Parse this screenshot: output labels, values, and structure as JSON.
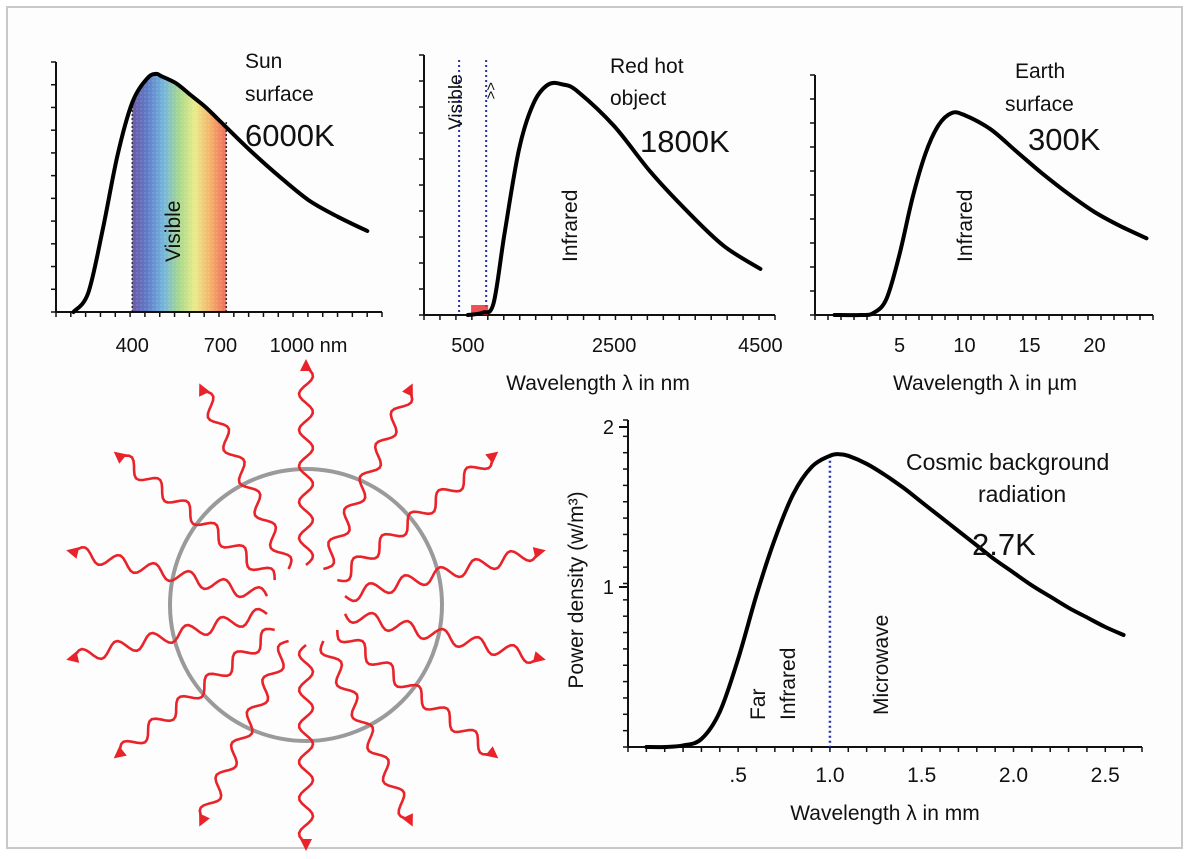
{
  "colors": {
    "curve": "#000000",
    "axis": "#111111",
    "frame": "#c9c9c9",
    "wave": "#e8242a",
    "circle": "#9a9a9a",
    "dotted_line": "#2233aa",
    "spectrum": [
      "#6a5aa8",
      "#5f7ec8",
      "#74b6dc",
      "#a8d88c",
      "#eaeb8a",
      "#f5b06a",
      "#ee6b5c"
    ]
  },
  "chart_data": [
    {
      "type": "line",
      "id": "sun",
      "label_lines": [
        "Sun",
        "surface"
      ],
      "temperature": "6000K",
      "band_label": "Visible",
      "x": [
        200,
        250,
        300,
        350,
        400,
        450,
        480,
        500,
        550,
        600,
        650,
        700,
        800,
        900,
        1000,
        1100,
        1200
      ],
      "y": [
        0.0,
        0.08,
        0.35,
        0.66,
        0.88,
        0.98,
        1.0,
        0.99,
        0.96,
        0.91,
        0.86,
        0.8,
        0.68,
        0.57,
        0.47,
        0.4,
        0.34
      ],
      "xlim": [
        120,
        1250
      ],
      "ylim": [
        0,
        1.05
      ],
      "visible_band": [
        400,
        720
      ],
      "xticks": [
        {
          "value": 400,
          "label": "400"
        },
        {
          "value": 700,
          "label": "700"
        },
        {
          "value": 1000,
          "label": "1000 nm"
        }
      ],
      "xlabel": "",
      "ylabel": ""
    },
    {
      "type": "line",
      "id": "red_hot",
      "label_lines": [
        "Red hot",
        "object"
      ],
      "temperature": "1800K",
      "band_label": "Infrared",
      "visible_label": "Visible",
      "x": [
        500,
        700,
        850,
        1000,
        1200,
        1400,
        1600,
        1800,
        2000,
        2500,
        3000,
        3500,
        4000,
        4500
      ],
      "y": [
        0.0,
        0.01,
        0.05,
        0.35,
        0.72,
        0.92,
        1.0,
        1.0,
        0.97,
        0.82,
        0.62,
        0.45,
        0.3,
        0.2
      ],
      "xlim": [
        -100,
        4700
      ],
      "ylim": [
        0,
        1.05
      ],
      "dotted_x": [
        380,
        750
      ],
      "xticks": [
        {
          "value": 500,
          "label": "500"
        },
        {
          "value": 2500,
          "label": "2500"
        },
        {
          "value": 4500,
          "label": "4500"
        }
      ],
      "xlabel": "Wavelength λ in nm",
      "ylabel": ""
    },
    {
      "type": "line",
      "id": "earth",
      "label_lines": [
        "Earth",
        "surface"
      ],
      "temperature": "300K",
      "band_label": "Infrared",
      "x": [
        0,
        2,
        3,
        4,
        5,
        6,
        7,
        8,
        9,
        10,
        12,
        14,
        16,
        18,
        20,
        22,
        24
      ],
      "y": [
        0.0,
        0.0,
        0.01,
        0.08,
        0.3,
        0.58,
        0.8,
        0.94,
        1.0,
        0.99,
        0.92,
        0.81,
        0.7,
        0.6,
        0.51,
        0.44,
        0.38
      ],
      "xlim": [
        -1.5,
        24.5
      ],
      "ylim": [
        0,
        1.05
      ],
      "xticks": [
        {
          "value": 5,
          "label": "5"
        },
        {
          "value": 10,
          "label": "10"
        },
        {
          "value": 15,
          "label": "15"
        },
        {
          "value": 20,
          "label": "20"
        }
      ],
      "xlabel": "Wavelength λ in µm",
      "ylabel": ""
    },
    {
      "type": "line",
      "id": "cmb",
      "label_lines": [
        "Cosmic background",
        "radiation"
      ],
      "temperature": "2.7K",
      "band_labels": [
        "Far",
        "Infrared",
        "Microwave"
      ],
      "x": [
        0.0,
        0.1,
        0.2,
        0.3,
        0.4,
        0.5,
        0.6,
        0.7,
        0.8,
        0.9,
        1.0,
        1.05,
        1.1,
        1.2,
        1.3,
        1.4,
        1.5,
        1.6,
        1.7,
        1.8,
        1.9,
        2.0,
        2.1,
        2.2,
        2.3,
        2.4,
        2.5,
        2.6
      ],
      "y": [
        0.0,
        0.0,
        0.01,
        0.05,
        0.22,
        0.55,
        0.95,
        1.3,
        1.58,
        1.75,
        1.82,
        1.83,
        1.82,
        1.77,
        1.7,
        1.62,
        1.53,
        1.44,
        1.35,
        1.26,
        1.17,
        1.09,
        1.01,
        0.94,
        0.87,
        0.81,
        0.75,
        0.7
      ],
      "xlim": [
        -0.1,
        2.7
      ],
      "ylim": [
        0,
        2
      ],
      "dotted_x": 1.0,
      "xticks": [
        {
          "value": 0.5,
          "label": ".5"
        },
        {
          "value": 1.0,
          "label": "1.0"
        },
        {
          "value": 1.5,
          "label": "1.5"
        },
        {
          "value": 2.0,
          "label": "2.0"
        },
        {
          "value": 2.5,
          "label": "2.5"
        }
      ],
      "yticks": [
        {
          "value": 1,
          "label": "1"
        },
        {
          "value": 2,
          "label": "2"
        }
      ],
      "xlabel": "Wavelength λ in mm",
      "ylabel": "Power density (w/m³)"
    }
  ]
}
